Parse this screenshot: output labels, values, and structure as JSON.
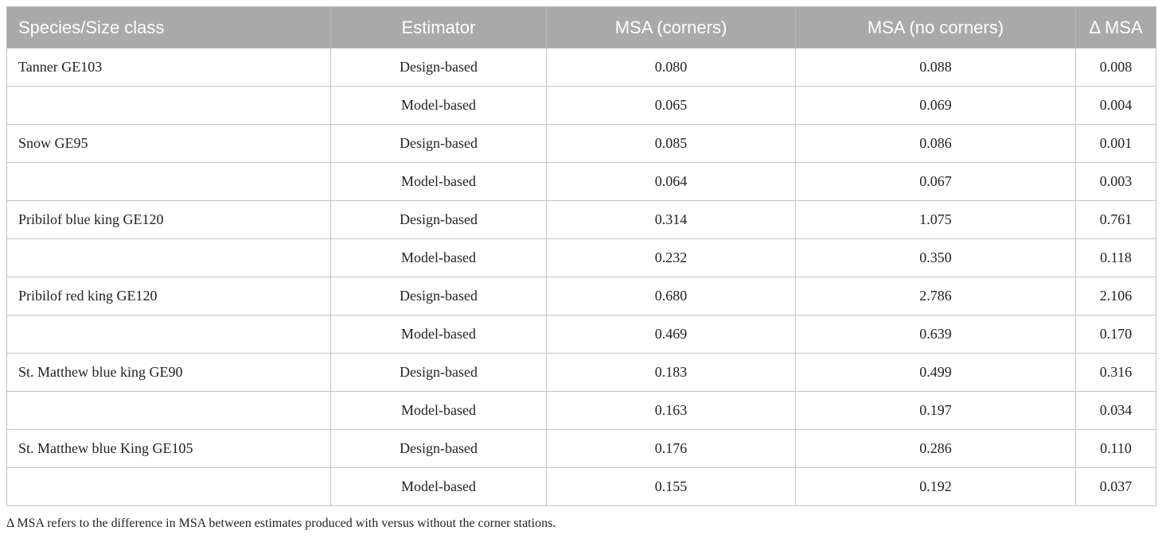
{
  "table": {
    "headers": [
      "Species/Size class",
      "Estimator",
      "MSA (corners)",
      "MSA (no corners)",
      "Δ MSA"
    ],
    "rows": [
      [
        "Tanner GE103",
        "Design-based",
        "0.080",
        "0.088",
        "0.008"
      ],
      [
        "",
        "Model-based",
        "0.065",
        "0.069",
        "0.004"
      ],
      [
        "Snow GE95",
        "Design-based",
        "0.085",
        "0.086",
        "0.001"
      ],
      [
        "",
        "Model-based",
        "0.064",
        "0.067",
        "0.003"
      ],
      [
        "Pribilof blue king GE120",
        "Design-based",
        "0.314",
        "1.075",
        "0.761"
      ],
      [
        "",
        "Model-based",
        "0.232",
        "0.350",
        "0.118"
      ],
      [
        "Pribilof red king GE120",
        "Design-based",
        "0.680",
        "2.786",
        "2.106"
      ],
      [
        "",
        "Model-based",
        "0.469",
        "0.639",
        "0.170"
      ],
      [
        "St. Matthew blue king GE90",
        "Design-based",
        "0.183",
        "0.499",
        "0.316"
      ],
      [
        "",
        "Model-based",
        "0.163",
        "0.197",
        "0.034"
      ],
      [
        "St. Matthew blue King GE105",
        "Design-based",
        "0.176",
        "0.286",
        "0.110"
      ],
      [
        "",
        "Model-based",
        "0.155",
        "0.192",
        "0.037"
      ]
    ],
    "header_bg": "#a9a9a9"
  },
  "footnote": "Δ MSA refers to the difference in MSA between estimates produced with versus without the corner stations."
}
